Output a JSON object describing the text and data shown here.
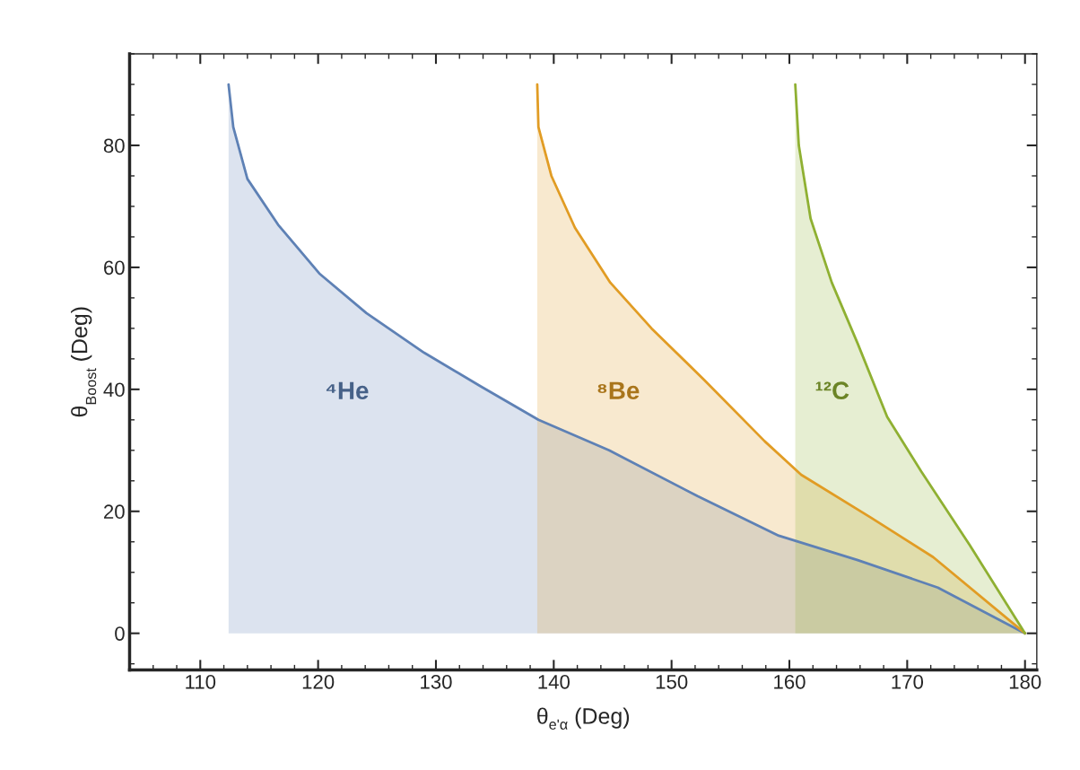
{
  "chart_data": {
    "type": "area",
    "xlabel": "θ$_{e'α}$ (Deg)",
    "ylabel": "θ$_{Boost}$ (Deg)",
    "xlim": [
      104,
      181
    ],
    "ylim": [
      -6,
      95
    ],
    "xticks": [
      110,
      120,
      130,
      140,
      150,
      160,
      170,
      180
    ],
    "yticks": [
      0,
      20,
      40,
      60,
      80
    ],
    "grid": false,
    "legend": false,
    "series": [
      {
        "name": "⁴He",
        "color": "#5e81b5",
        "x": [
          112.4,
          112.8,
          114.0,
          116.6,
          120.1,
          124.1,
          129.0,
          133.8,
          138.7,
          144.7,
          152.2,
          159.1,
          165.8,
          172.6,
          180
        ],
        "values": [
          90,
          83,
          74.5,
          67,
          59,
          52.5,
          46,
          40.5,
          35,
          30,
          22.5,
          16,
          12,
          7.5,
          0
        ]
      },
      {
        "name": "⁸Be",
        "color": "#e19c24",
        "x": [
          138.6,
          138.7,
          139.8,
          141.8,
          144.8,
          148.3,
          152.8,
          157.9,
          161.0,
          166.9,
          172.2,
          180
        ],
        "values": [
          90,
          83,
          75,
          66.5,
          57.5,
          50,
          41.5,
          31.5,
          26,
          19,
          12.5,
          0
        ]
      },
      {
        "name": "¹²C",
        "color": "#8fb032",
        "x": [
          160.5,
          160.8,
          161.8,
          163.6,
          165.8,
          168.3,
          171.2,
          175.3,
          180
        ],
        "values": [
          90,
          80,
          68,
          57.5,
          47.5,
          35.5,
          26.5,
          14.5,
          0
        ]
      }
    ]
  }
}
